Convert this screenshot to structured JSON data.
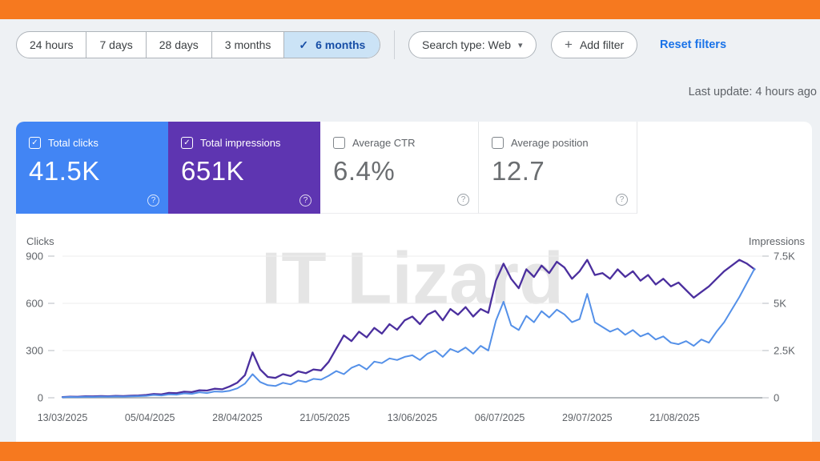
{
  "frame": {
    "color": "#f6791f"
  },
  "icons": {
    "check": "✓",
    "caret": "▾",
    "plus": "+",
    "help": "?"
  },
  "toolbar": {
    "date_ranges": [
      {
        "label": "24 hours",
        "active": false
      },
      {
        "label": "7 days",
        "active": false
      },
      {
        "label": "28 days",
        "active": false
      },
      {
        "label": "3 months",
        "active": false
      },
      {
        "label": "6 months",
        "active": true
      }
    ],
    "search_type_label": "Search type: Web",
    "add_filter_label": "Add filter",
    "reset_filters_label": "Reset filters"
  },
  "status": {
    "last_update": "Last update: 4 hours ago"
  },
  "metric_cards": [
    {
      "label": "Total clicks",
      "value": "41.5K",
      "checked": true,
      "bg": "#4285f4"
    },
    {
      "label": "Total impressions",
      "value": "651K",
      "checked": true,
      "bg": "#5e35b1"
    },
    {
      "label": "Average CTR",
      "value": "6.4%",
      "checked": false,
      "bg": "#ffffff"
    },
    {
      "label": "Average position",
      "value": "12.7",
      "checked": false,
      "bg": "#ffffff"
    }
  ],
  "watermark": "IT Lizard",
  "chart_data": {
    "type": "line",
    "legend_position": "none",
    "grid": true,
    "y_left": {
      "label": "Clicks",
      "ticks": [
        0,
        300,
        600,
        900
      ],
      "max": 900
    },
    "y_right": {
      "label": "Impressions",
      "ticks": [
        "0",
        "2.5K",
        "5K",
        "7.5K"
      ],
      "tick_values": [
        0,
        2500,
        5000,
        7500
      ],
      "max": 7500
    },
    "x_tick_labels": [
      "13/03/2025",
      "05/04/2025",
      "28/04/2025",
      "21/05/2025",
      "13/06/2025",
      "06/07/2025",
      "29/07/2025",
      "21/08/2025"
    ],
    "x_tick_days": [
      0,
      23,
      46,
      69,
      92,
      115,
      138,
      161
    ],
    "days_per_point": 2,
    "total_days": 183,
    "series": [
      {
        "name": "Total impressions",
        "axis": "right",
        "color": "#4b2f9e",
        "values": [
          40,
          60,
          50,
          80,
          70,
          90,
          80,
          100,
          90,
          110,
          120,
          150,
          200,
          180,
          260,
          240,
          320,
          300,
          400,
          380,
          480,
          450,
          600,
          800,
          1200,
          2400,
          1500,
          1100,
          1050,
          1250,
          1150,
          1400,
          1300,
          1500,
          1450,
          1900,
          2600,
          3300,
          3000,
          3500,
          3200,
          3700,
          3400,
          3900,
          3600,
          4100,
          4300,
          3900,
          4400,
          4600,
          4100,
          4700,
          4400,
          4800,
          4300,
          4700,
          4500,
          6200,
          7100,
          6300,
          5800,
          6800,
          6400,
          7000,
          6600,
          7200,
          6900,
          6300,
          6700,
          7300,
          6500,
          6600,
          6300,
          6800,
          6400,
          6700,
          6200,
          6500,
          6000,
          6300,
          5900,
          6100,
          5700,
          5300,
          5600,
          5900,
          6300,
          6700,
          7000,
          7300,
          7100,
          6800
        ]
      },
      {
        "name": "Total clicks",
        "axis": "left",
        "color": "#5490e8",
        "values": [
          3,
          5,
          4,
          6,
          5,
          7,
          6,
          8,
          7,
          9,
          10,
          12,
          18,
          15,
          22,
          20,
          28,
          25,
          35,
          30,
          40,
          38,
          45,
          60,
          90,
          150,
          100,
          80,
          75,
          95,
          85,
          110,
          100,
          120,
          115,
          140,
          170,
          150,
          190,
          210,
          180,
          230,
          220,
          250,
          240,
          260,
          270,
          240,
          280,
          300,
          260,
          310,
          290,
          320,
          280,
          330,
          300,
          490,
          610,
          460,
          430,
          520,
          480,
          550,
          510,
          560,
          530,
          480,
          500,
          660,
          480,
          450,
          420,
          440,
          400,
          430,
          390,
          410,
          370,
          390,
          350,
          340,
          360,
          330,
          370,
          350,
          420,
          480,
          560,
          640,
          730,
          820
        ]
      }
    ]
  }
}
